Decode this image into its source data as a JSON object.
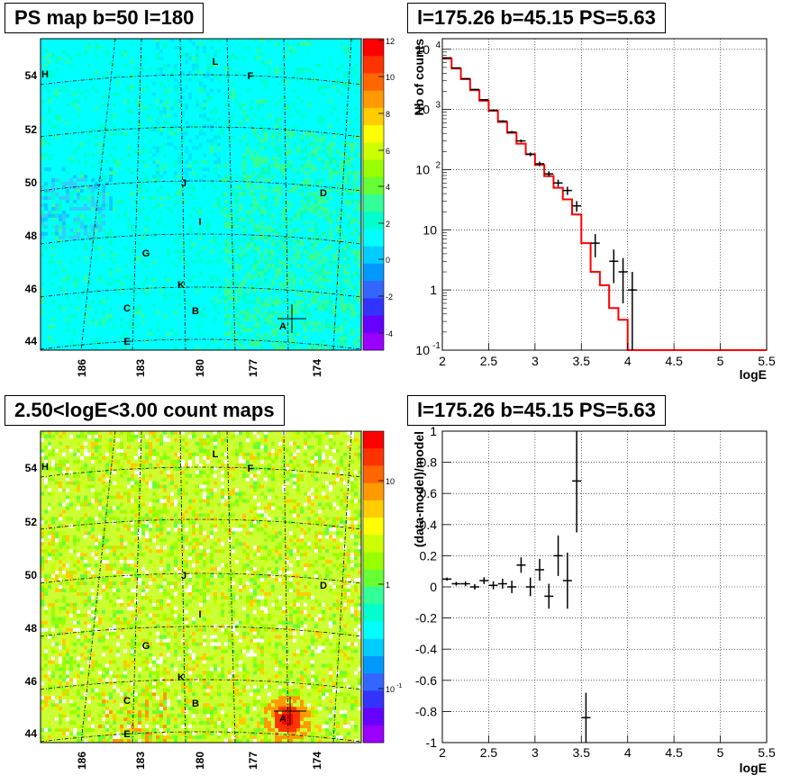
{
  "panels": {
    "top_left_title": "PS map b=50 l=180",
    "top_right_title": "l=175.26 b=45.15 PS=5.63",
    "bottom_left_title": "2.50<logE<3.00 count maps",
    "bottom_right_title": "l=175.26 b=45.15 PS=5.63"
  },
  "maps": {
    "lat_labels": [
      "54",
      "52",
      "50",
      "48",
      "46",
      "44"
    ],
    "lon_labels": [
      "186",
      "183",
      "180",
      "177",
      "174"
    ],
    "sources": [
      "A",
      "B",
      "C",
      "D",
      "E",
      "F",
      "G",
      "H",
      "I",
      "J",
      "K",
      "L"
    ],
    "top_colorbar_ticks": [
      "12",
      "10",
      "8",
      "6",
      "4",
      "2",
      "0",
      "-2",
      "-4"
    ],
    "bottom_colorbar_ticks": [
      "10",
      "1",
      "10"
    ],
    "bottom_colorbar_exps": [
      "",
      "",
      "-1"
    ]
  },
  "chart_data": [
    {
      "type": "line",
      "title": "l=175.26 b=45.15 PS=5.63",
      "xlabel": "logE",
      "ylabel": "Nb of counts",
      "xlim": [
        2,
        5.5
      ],
      "ylim": [
        0.1,
        15000
      ],
      "yscale": "log",
      "grid": true,
      "x_ticks": [
        "2",
        "2.5",
        "3",
        "3.5",
        "4",
        "4.5",
        "5",
        "5.5"
      ],
      "y_ticks": [
        "10^-1",
        "1",
        "10",
        "10^2",
        "10^3",
        "10^4"
      ],
      "series": [
        {
          "style": "step",
          "color": "#ff0000",
          "bin_edges": [
            2.0,
            2.1,
            2.2,
            2.3,
            2.4,
            2.5,
            2.6,
            2.7,
            2.8,
            2.9,
            3.0,
            3.1,
            3.2,
            3.3,
            3.4,
            3.5,
            3.6,
            3.7,
            3.8,
            3.9,
            4.0,
            4.1,
            4.2,
            4.3,
            4.4,
            4.5,
            4.6,
            4.7,
            4.8,
            4.9,
            5.0,
            5.1,
            5.2,
            5.3,
            5.4,
            5.5
          ],
          "values": [
            7000,
            4800,
            3200,
            2100,
            1400,
            950,
            620,
            410,
            270,
            180,
            120,
            78,
            50,
            32,
            18,
            6,
            2,
            1.2,
            0.5,
            0.32,
            0.09,
            0.09,
            0.09,
            0.09,
            0.09,
            0.09,
            0.09,
            0.09,
            0.09,
            0.09,
            0.09,
            0.09,
            0.09,
            0.09,
            0.09
          ]
        },
        {
          "style": "errorbar",
          "color": "#000000",
          "x": [
            2.05,
            2.15,
            2.25,
            2.35,
            2.45,
            2.55,
            2.65,
            2.75,
            2.85,
            2.95,
            3.05,
            3.15,
            3.25,
            3.35,
            3.45,
            3.55,
            3.65,
            3.75,
            3.85,
            3.95,
            4.05
          ],
          "y": [
            7200,
            4900,
            3250,
            2150,
            1450,
            970,
            640,
            420,
            300,
            180,
            125,
            85,
            60,
            45,
            25,
            0.0,
            6,
            0,
            3,
            2,
            1
          ],
          "yerr": [
            85,
            70,
            57,
            46,
            38,
            31,
            25,
            20,
            17,
            13,
            11,
            9,
            8,
            7,
            5,
            0,
            2.5,
            0,
            1.7,
            1.4,
            1
          ]
        }
      ]
    },
    {
      "type": "scatter",
      "title": "l=175.26 b=45.15 PS=5.63",
      "xlabel": "logE",
      "ylabel": "(data-model)/model",
      "xlim": [
        2,
        5.5
      ],
      "ylim": [
        -1,
        1
      ],
      "grid": true,
      "x_ticks": [
        "2",
        "2.5",
        "3",
        "3.5",
        "4",
        "4.5",
        "5",
        "5.5"
      ],
      "y_ticks": [
        "-1",
        "-0.8",
        "-0.6",
        "-0.4",
        "-0.2",
        "0",
        "0.2",
        "0.4",
        "0.6",
        "0.8",
        "1"
      ],
      "series": [
        {
          "style": "errorbar",
          "color": "#000000",
          "x": [
            2.05,
            2.15,
            2.25,
            2.35,
            2.45,
            2.55,
            2.65,
            2.75,
            2.85,
            2.95,
            3.05,
            3.15,
            3.25,
            3.35,
            3.45,
            3.55
          ],
          "y": [
            0.05,
            0.02,
            0.02,
            0.0,
            0.04,
            0.01,
            0.02,
            0.0,
            0.14,
            0.0,
            0.11,
            -0.06,
            0.2,
            0.04,
            0.68,
            -0.84
          ],
          "yerr": [
            0.01,
            0.012,
            0.015,
            0.018,
            0.022,
            0.026,
            0.032,
            0.04,
            0.05,
            0.06,
            0.07,
            0.08,
            0.13,
            0.18,
            0.33,
            0.16
          ]
        }
      ]
    }
  ]
}
